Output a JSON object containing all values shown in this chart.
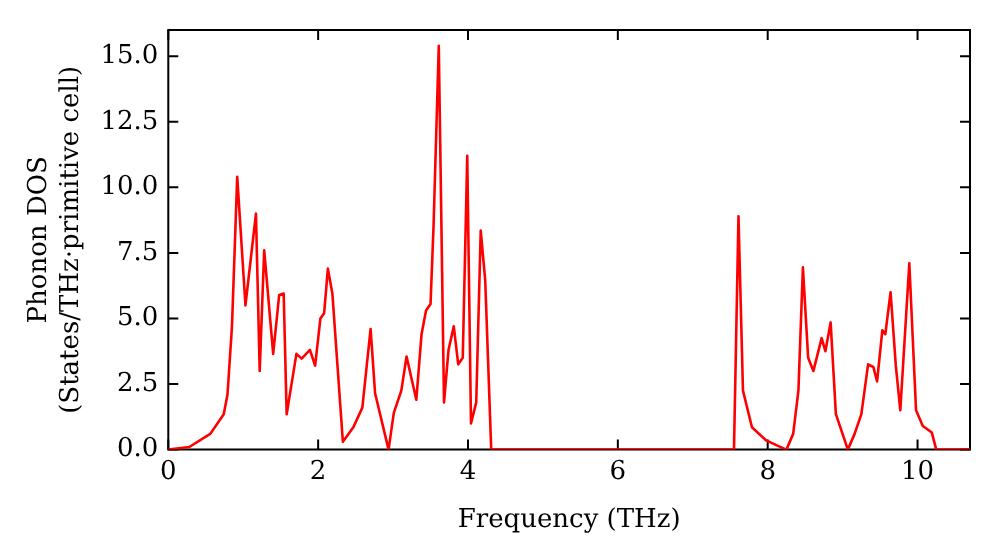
{
  "chart_data": {
    "type": "line",
    "xlabel": "Frequency (THz)",
    "ylabel": "Phonon DOS\n(States/THz·primitive cell)",
    "x": [
      0,
      0.28,
      0.56,
      0.74,
      0.79,
      0.85,
      0.92,
      1.03,
      1.17,
      1.22,
      1.28,
      1.4,
      1.48,
      1.54,
      1.58,
      1.71,
      1.78,
      1.89,
      1.96,
      2.03,
      2.08,
      2.13,
      2.19,
      2.33,
      2.47,
      2.59,
      2.7,
      2.76,
      2.94,
      3.01,
      3.11,
      3.18,
      3.31,
      3.38,
      3.44,
      3.5,
      3.54,
      3.61,
      3.68,
      3.74,
      3.81,
      3.87,
      3.93,
      3.99,
      4.04,
      4.11,
      4.17,
      4.23,
      4.31,
      7.55,
      7.61,
      7.67,
      7.79,
      7.98,
      8.13,
      8.25,
      8.34,
      8.41,
      8.47,
      8.54,
      8.61,
      8.72,
      8.77,
      8.84,
      8.91,
      9.07,
      9.16,
      9.25,
      9.34,
      9.41,
      9.46,
      9.53,
      9.57,
      9.64,
      9.71,
      9.77,
      9.89,
      9.98,
      10.07,
      10.19,
      10.25,
      10.7
    ],
    "series": [
      {
        "color": "#ff0000",
        "values": [
          0,
          0.1,
          0.6,
          1.35,
          2.1,
          4.7,
          10.4,
          5.5,
          9.0,
          3.0,
          7.6,
          3.65,
          5.9,
          5.95,
          1.35,
          3.65,
          3.47,
          3.8,
          3.2,
          5.0,
          5.2,
          6.9,
          5.95,
          0.3,
          0.85,
          1.6,
          4.6,
          2.15,
          0,
          1.4,
          2.25,
          3.55,
          1.9,
          4.4,
          5.3,
          5.55,
          8.5,
          15.4,
          1.8,
          3.8,
          4.7,
          3.25,
          3.5,
          11.2,
          1.0,
          1.8,
          8.35,
          6.45,
          0,
          0,
          8.9,
          2.25,
          0.85,
          0.35,
          0.15,
          0,
          0.6,
          2.25,
          6.95,
          3.5,
          3.0,
          4.25,
          3.75,
          4.85,
          1.35,
          0,
          0.6,
          1.35,
          3.25,
          3.15,
          2.6,
          4.55,
          4.4,
          6.0,
          3.2,
          1.5,
          7.1,
          1.5,
          0.9,
          0.65,
          0,
          0
        ]
      }
    ],
    "xlim": [
      0,
      10.7
    ],
    "xticks": [
      0,
      2,
      4,
      6,
      8,
      10
    ],
    "ylim": [
      0,
      16
    ],
    "yticks": [
      {
        "value": 0,
        "label": "0.0"
      },
      {
        "value": 2.5,
        "label": "2.5"
      },
      {
        "value": 5,
        "label": "5.0"
      },
      {
        "value": 7.5,
        "label": "7.5"
      },
      {
        "value": 10,
        "label": "10.0"
      },
      {
        "value": 12.5,
        "label": "12.5"
      },
      {
        "value": 15,
        "label": "15.0"
      }
    ],
    "grid": false,
    "legend": false,
    "marker": "none",
    "line_style": "solid"
  }
}
